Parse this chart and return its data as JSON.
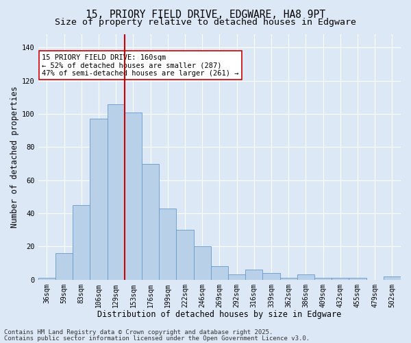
{
  "title1": "15, PRIORY FIELD DRIVE, EDGWARE, HA8 9PT",
  "title2": "Size of property relative to detached houses in Edgware",
  "xlabel": "Distribution of detached houses by size in Edgware",
  "ylabel": "Number of detached properties",
  "bin_labels": [
    "36sqm",
    "59sqm",
    "83sqm",
    "106sqm",
    "129sqm",
    "153sqm",
    "176sqm",
    "199sqm",
    "222sqm",
    "246sqm",
    "269sqm",
    "292sqm",
    "316sqm",
    "339sqm",
    "362sqm",
    "386sqm",
    "409sqm",
    "432sqm",
    "455sqm",
    "479sqm",
    "502sqm"
  ],
  "bar_heights": [
    1,
    16,
    45,
    97,
    106,
    101,
    70,
    43,
    30,
    20,
    8,
    3,
    6,
    4,
    1,
    3,
    1,
    1,
    1,
    0,
    2
  ],
  "bar_color": "#b8d0e8",
  "bar_edge_color": "#6699cc",
  "vline_after_bar": 4,
  "vline_color": "#cc0000",
  "annotation_text": "15 PRIORY FIELD DRIVE: 160sqm\n← 52% of detached houses are smaller (287)\n47% of semi-detached houses are larger (261) →",
  "annotation_box_color": "#ffffff",
  "annotation_box_edge": "#cc0000",
  "ylim": [
    0,
    148
  ],
  "yticks": [
    0,
    20,
    40,
    60,
    80,
    100,
    120,
    140
  ],
  "background_color": "#dce8f5",
  "plot_background": "#dce8f5",
  "footer1": "Contains HM Land Registry data © Crown copyright and database right 2025.",
  "footer2": "Contains public sector information licensed under the Open Government Licence v3.0.",
  "grid_color": "#ffffff",
  "title_fontsize": 10.5,
  "subtitle_fontsize": 9.5,
  "axis_label_fontsize": 8.5,
  "tick_fontsize": 7,
  "footer_fontsize": 6.5,
  "annotation_fontsize": 7.5
}
